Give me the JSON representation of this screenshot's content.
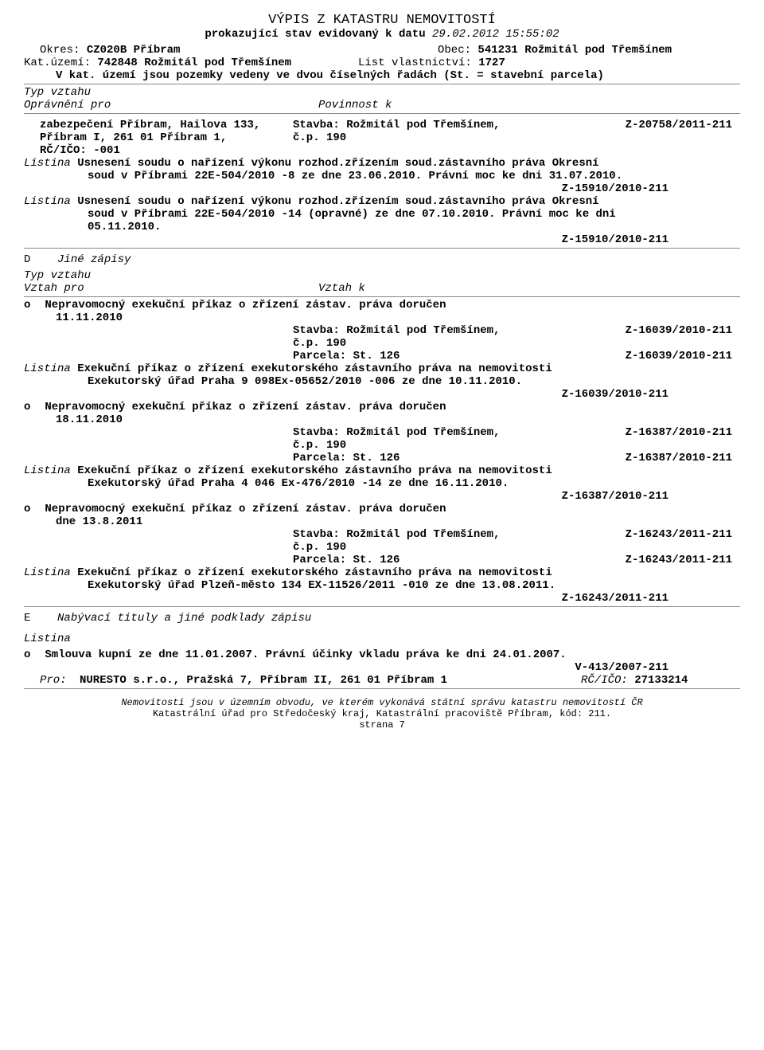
{
  "header": {
    "title": "VÝPIS Z KATASTRU NEMOVITOSTÍ",
    "subtitle_prefix": "prokazující stav evidovaný k datu",
    "datetime": "29.02.2012 15:55:02",
    "okres_label": "Okres:",
    "okres_value": "CZ020B Příbram",
    "obec_label": "Obec:",
    "obec_value": "541231 Rožmitál pod Třemšínem",
    "kat_uzemi_label": "Kat.území:",
    "kat_uzemi_value": "742848 Rožmitál pod Třemšínem",
    "list_vlast_label": "List vlastnictví:",
    "list_vlast_value": "1727",
    "note": "V kat. území jsou pozemky vedeny ve dvou číselných řadách  (St. = stavební parcela)"
  },
  "typ_vztahu": {
    "label": "Typ vztahu",
    "opravneni": "Oprávnění pro",
    "povinnost": "Povinnost k"
  },
  "zabezpeceni": {
    "left1": "zabezpečení Příbram, Hailova 133,",
    "left2": "Příbram I, 261 01 Příbram 1,",
    "left3": "RČ/IČO: -001",
    "mid1": "Stavba: Rožmitál pod Třemšínem,",
    "mid2": "č.p. 190",
    "ref": "Z-20758/2011-211"
  },
  "listina1": {
    "label": "Listina",
    "text1": "Usnesení soudu o nařízení výkonu rozhod.zřízením soud.zástavního práva Okresní",
    "text2": "soud v Příbrami 22E-504/2010 -8 ze dne 23.06.2010. Právní moc ke dni 31.07.2010.",
    "ref": "Z-15910/2010-211"
  },
  "listina2": {
    "label": "Listina",
    "text1": "Usnesení soudu o nařízení výkonu rozhod.zřízením soud.zástavního práva Okresní",
    "text2": "soud v Příbrami 22E-504/2010 -14 (opravné) ze dne 07.10.2010. Právní moc ke dni",
    "text3": "05.11.2010.",
    "ref": "Z-15910/2010-211"
  },
  "sectionD": {
    "marker": "D",
    "title": "Jiné zápisy",
    "typ_vztahu": "Typ vztahu",
    "vztah_pro": "Vztah pro",
    "vztah_k": "Vztah k"
  },
  "entries": [
    {
      "marker": "o",
      "title": "Nepravomocný exekuční příkaz o zřízení zástav. práva doručen",
      "date": "11.11.2010",
      "stavba": "Stavba: Rožmitál pod Třemšínem,",
      "cp": "č.p. 190",
      "ref1": "Z-16039/2010-211",
      "parcela": "Parcela: St.  126",
      "ref2": "Z-16039/2010-211",
      "listina_label": "Listina",
      "listina_text1": "Exekuční příkaz o zřízení exekutorského zástavního práva na nemovitosti",
      "listina_text2": "Exekutorský úřad Praha 9 098Ex-05652/2010 -006 ze dne 10.11.2010.",
      "ref3": "Z-16039/2010-211"
    },
    {
      "marker": "o",
      "title": "Nepravomocný exekuční příkaz o zřízení zástav. práva doručen",
      "date": "18.11.2010",
      "stavba": "Stavba: Rožmitál pod Třemšínem,",
      "cp": "č.p. 190",
      "ref1": "Z-16387/2010-211",
      "parcela": "Parcela: St.  126",
      "ref2": "Z-16387/2010-211",
      "listina_label": "Listina",
      "listina_text1": "Exekuční příkaz o zřízení exekutorského zástavního práva na nemovitosti",
      "listina_text2": "Exekutorský úřad Praha 4 046 Ex-476/2010 -14 ze dne 16.11.2010.",
      "ref3": "Z-16387/2010-211"
    },
    {
      "marker": "o",
      "title": "Nepravomocný exekuční příkaz o zřízení zástav. práva doručen",
      "date": "dne 13.8.2011",
      "stavba": "Stavba: Rožmitál pod Třemšínem,",
      "cp": "č.p. 190",
      "ref1": "Z-16243/2011-211",
      "parcela": "Parcela: St.  126",
      "ref2": "Z-16243/2011-211",
      "listina_label": "Listina",
      "listina_text1": "Exekuční příkaz o zřízení exekutorského zástavního práva na nemovitosti",
      "listina_text2": "Exekutorský úřad Plzeň-město 134 EX-11526/2011 -010 ze dne 13.08.2011.",
      "ref3": "Z-16243/2011-211"
    }
  ],
  "sectionE": {
    "marker": "E",
    "title": "Nabývací tituly a jiné podklady zápisu",
    "listina_label": "Listina",
    "entry_marker": "o",
    "entry_text": "Smlouva kupní  ze dne 11.01.2007. Právní účinky vkladu práva ke dni 24.01.2007.",
    "ref": "V-413/2007-211",
    "pro_label": "Pro:",
    "pro_value": "NURESTO s.r.o., Pražská 7, Příbram II, 261 01 Příbram 1",
    "rcico_label": "RČ/IČO:",
    "rcico_value": "27133214"
  },
  "footer": {
    "line1": "Nemovitosti jsou v územním obvodu, ve kterém vykonává státní správu katastru nemovitostí ČR",
    "line2": "Katastrální úřad pro Středočeský kraj, Katastrální pracoviště Příbram, kód: 211.",
    "page": "strana 7"
  }
}
